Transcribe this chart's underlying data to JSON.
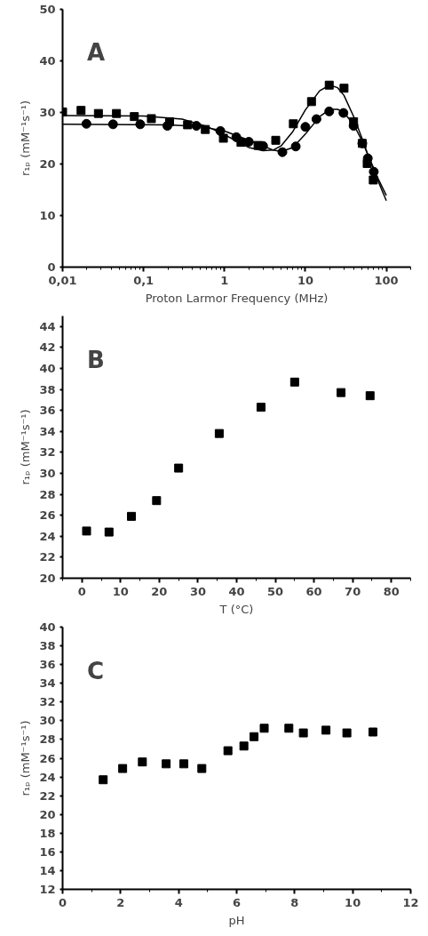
{
  "chart_data": [
    {
      "type": "scatter",
      "title": "A",
      "xlabel": "Proton Larmor Frequency (MHz)",
      "ylabel": "r₁ₚ (mM⁻¹s⁻¹)",
      "log": "x",
      "xlim": [
        0.01,
        200
      ],
      "ylim": [
        0,
        50
      ],
      "xticks": [
        {
          "value": 0.01,
          "label": "0,01"
        },
        {
          "value": 0.1,
          "label": "0,1"
        },
        1,
        10,
        100
      ],
      "yticks": [
        0,
        10,
        20,
        30,
        40,
        50
      ],
      "grid": false,
      "series": [
        {
          "marker": "square",
          "color": "#000000",
          "x": [
            0.01,
            0.0169,
            0.0277,
            0.0463,
            0.077,
            0.125,
            0.21,
            0.35,
            0.58,
            0.97,
            1.6,
            2.6,
            4.3,
            7.1,
            11.9,
            19.7,
            30,
            39.4,
            50.5,
            58,
            69
          ],
          "values": [
            30.1,
            30.4,
            29.8,
            29.8,
            29.2,
            28.8,
            28.2,
            27.6,
            26.7,
            25.0,
            24.2,
            23.6,
            24.6,
            27.8,
            32.1,
            35.3,
            34.7,
            28.2,
            24.0,
            20.1,
            16.9
          ]
        },
        {
          "marker": "circle",
          "color": "#000000",
          "x": [
            0.0197,
            0.042,
            0.091,
            0.197,
            0.45,
            0.89,
            1.4,
            2.0,
            3.0,
            5.2,
            7.6,
            10,
            13.7,
            19.7,
            29.5,
            39.4,
            50.5,
            59,
            70
          ],
          "values": [
            27.8,
            27.7,
            27.7,
            27.4,
            27.4,
            26.4,
            25.2,
            24.3,
            23.5,
            22.3,
            23.4,
            27.2,
            28.7,
            30.2,
            29.9,
            27.4,
            24.0,
            21.1,
            18.5
          ]
        },
        {
          "type": "line",
          "marker": "none",
          "color": "#000000",
          "line_style": "solid",
          "x": [
            0.01,
            0.1,
            0.3,
            0.6,
            1,
            1.5,
            2,
            3,
            4,
            5,
            7,
            10,
            15,
            20,
            25,
            30,
            40,
            50,
            60,
            80,
            100
          ],
          "values": [
            29.4,
            29.3,
            28.7,
            27.3,
            25.7,
            24.2,
            23.2,
            22.6,
            22.7,
            23.5,
            26.3,
            30.5,
            34.2,
            35.3,
            34.8,
            33.3,
            29.0,
            25.0,
            21.5,
            16.5,
            12.9
          ]
        },
        {
          "type": "line",
          "marker": "none",
          "color": "#000000",
          "line_style": "solid",
          "x": [
            0.01,
            0.2,
            0.5,
            1,
            2,
            3,
            4,
            5,
            7,
            10,
            15,
            20,
            25,
            30,
            40,
            50,
            60,
            80,
            100
          ],
          "values": [
            27.7,
            27.6,
            27.3,
            26.4,
            24.6,
            23.5,
            22.7,
            22.4,
            23.2,
            25.8,
            29.2,
            30.6,
            30.6,
            30.0,
            27.5,
            24.5,
            21.6,
            17.0,
            13.9
          ]
        }
      ]
    },
    {
      "type": "scatter",
      "title": "B",
      "xlabel": "T (°C)",
      "ylabel": "r₁ₚ (mM⁻¹s⁻¹)",
      "xlim": [
        -5,
        85
      ],
      "ylim": [
        20,
        45
      ],
      "xticks": [
        0,
        10,
        20,
        30,
        40,
        50,
        60,
        70,
        80
      ],
      "yticks": [
        20,
        22,
        24,
        26,
        28,
        30,
        32,
        34,
        36,
        38,
        40,
        42,
        44
      ],
      "grid": false,
      "series": [
        {
          "marker": "square",
          "color": "#000000",
          "x": [
            1.2,
            7,
            12.8,
            19.3,
            25,
            35.5,
            46.3,
            55,
            67,
            74.5
          ],
          "values": [
            24.5,
            24.4,
            25.9,
            27.4,
            30.5,
            33.8,
            36.3,
            38.7,
            37.7,
            37.4
          ]
        }
      ]
    },
    {
      "type": "scatter",
      "title": "C",
      "xlabel": "pH",
      "ylabel": "r₁ₚ (mM⁻¹s⁻¹)",
      "xlim": [
        0,
        12
      ],
      "ylim": [
        12,
        40
      ],
      "xticks": [
        0,
        2,
        4,
        6,
        8,
        10,
        12
      ],
      "yticks": [
        12,
        14,
        16,
        18,
        20,
        22,
        24,
        26,
        28,
        30,
        32,
        34,
        36,
        38,
        40
      ],
      "grid": false,
      "series": [
        {
          "marker": "square",
          "color": "#000000",
          "x": [
            1.4,
            2.07,
            2.75,
            3.57,
            4.18,
            4.8,
            5.7,
            6.25,
            6.6,
            6.95,
            7.8,
            8.3,
            9.08,
            9.8,
            10.7
          ],
          "values": [
            23.7,
            24.9,
            25.6,
            25.4,
            25.4,
            24.9,
            26.8,
            27.3,
            28.3,
            29.2,
            29.2,
            28.7,
            29.0,
            28.7,
            28.8
          ]
        }
      ]
    }
  ]
}
